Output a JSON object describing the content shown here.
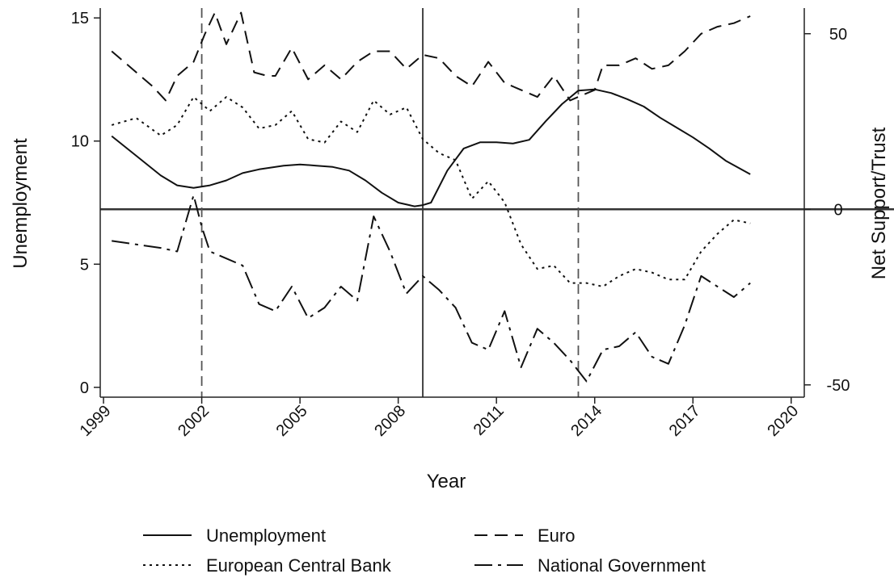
{
  "chart_data": {
    "type": "line",
    "xlabel": "Year",
    "ylabel_left": "Unemployment",
    "ylabel_right": "Net Support/Trust",
    "xlim": [
      1998.9,
      2020.4
    ],
    "ylim_left": [
      -0.4,
      15.4
    ],
    "ylim_right": [
      -53.5,
      57.3
    ],
    "x_ticks": [
      "1999",
      "2002",
      "2005",
      "2008",
      "2011",
      "2014",
      "2017",
      "2020"
    ],
    "y_ticks_left": [
      "0",
      "5",
      "10",
      "15"
    ],
    "y_ticks_right": [
      "-50",
      "0",
      "50"
    ],
    "reference_lines": {
      "horizontal_right_axis": 0,
      "vertical_dashed": [
        2002.0,
        2013.5
      ],
      "vertical_solid": [
        2008.75
      ]
    },
    "legend_position": "bottom",
    "series": [
      {
        "name": "Unemployment",
        "axis": "left",
        "style": "solid",
        "x": [
          1999.25,
          2000.0,
          2000.75,
          2001.25,
          2001.75,
          2002.25,
          2002.75,
          2003.25,
          2003.75,
          2004.5,
          2005.0,
          2005.5,
          2006.0,
          2006.5,
          2007.0,
          2007.5,
          2008.0,
          2008.5,
          2008.75,
          2009.0,
          2009.5,
          2010.0,
          2010.5,
          2011.0,
          2011.5,
          2012.0,
          2012.5,
          2013.0,
          2013.5,
          2014.0,
          2014.5,
          2015.0,
          2015.5,
          2016.0,
          2016.5,
          2017.0,
          2017.5,
          2018.0,
          2018.75
        ],
        "values": [
          10.2,
          9.4,
          8.6,
          8.2,
          8.1,
          8.2,
          8.4,
          8.7,
          8.85,
          9.0,
          9.05,
          9.0,
          8.95,
          8.8,
          8.4,
          7.9,
          7.5,
          7.35,
          7.4,
          7.5,
          8.8,
          9.7,
          9.95,
          9.95,
          9.9,
          10.05,
          10.8,
          11.5,
          12.05,
          12.1,
          11.95,
          11.7,
          11.4,
          10.95,
          10.55,
          10.15,
          9.7,
          9.2,
          8.65
        ]
      },
      {
        "name": "Euro",
        "axis": "right",
        "style": "dashed",
        "x": [
          1999.25,
          2000.0,
          2000.5,
          2000.9,
          2001.25,
          2001.75,
          2002.1,
          2002.4,
          2002.75,
          2003.2,
          2003.6,
          2004.0,
          2004.25,
          2004.75,
          2005.25,
          2005.75,
          2006.25,
          2006.75,
          2007.25,
          2007.75,
          2008.25,
          2008.75,
          2009.25,
          2009.75,
          2010.25,
          2010.75,
          2011.25,
          2011.75,
          2012.25,
          2012.75,
          2013.25,
          2013.75,
          2014.0,
          2014.25,
          2014.75,
          2015.25,
          2015.75,
          2016.25,
          2016.75,
          2017.25,
          2017.75,
          2018.25,
          2018.75
        ],
        "values": [
          45,
          39,
          35,
          31,
          38,
          42,
          50,
          56,
          47,
          56,
          39,
          38,
          38,
          46,
          37,
          41,
          37,
          42,
          45,
          45,
          40,
          44,
          43,
          38,
          35,
          42,
          36,
          34,
          32,
          38,
          31,
          33,
          34,
          41,
          41,
          43,
          40,
          41,
          45,
          50,
          52,
          53,
          55
        ]
      },
      {
        "name": "European Central Bank",
        "axis": "right",
        "style": "dotted",
        "x": [
          1999.25,
          2000.0,
          2000.75,
          2001.25,
          2001.75,
          2002.25,
          2002.75,
          2003.25,
          2003.75,
          2004.25,
          2004.75,
          2005.25,
          2005.75,
          2006.25,
          2006.75,
          2007.25,
          2007.75,
          2008.25,
          2008.75,
          2009.25,
          2009.75,
          2010.25,
          2010.75,
          2011.25,
          2011.75,
          2012.25,
          2012.75,
          2013.25,
          2013.75,
          2014.25,
          2014.75,
          2015.25,
          2015.75,
          2016.25,
          2016.75,
          2017.25,
          2017.75,
          2018.25,
          2018.75
        ],
        "values": [
          24,
          26,
          21,
          24,
          32,
          28,
          32,
          29,
          23,
          24,
          28,
          20,
          19,
          25,
          22,
          31,
          27,
          29,
          20,
          16,
          14,
          3,
          8,
          2,
          -10,
          -17,
          -16,
          -21,
          -21,
          -22,
          -19,
          -17,
          -18,
          -20,
          -20,
          -12,
          -7,
          -3,
          -4
        ]
      },
      {
        "name": "National Government",
        "axis": "right",
        "style": "dash-dot",
        "x": [
          1999.25,
          2000.0,
          2000.75,
          2001.25,
          2001.75,
          2002.0,
          2002.25,
          2002.75,
          2003.25,
          2003.75,
          2004.25,
          2004.75,
          2005.25,
          2005.75,
          2006.25,
          2006.75,
          2007.25,
          2007.75,
          2008.25,
          2008.75,
          2009.25,
          2009.75,
          2010.25,
          2010.75,
          2011.25,
          2011.75,
          2012.25,
          2012.75,
          2013.25,
          2013.75,
          2014.25,
          2014.75,
          2015.25,
          2015.75,
          2016.25,
          2016.75,
          2017.25,
          2017.75,
          2018.25,
          2018.75
        ],
        "values": [
          -9,
          -10,
          -11,
          -12,
          4,
          -5,
          -12,
          -14,
          -16,
          -27,
          -29,
          -22,
          -31,
          -28,
          -22,
          -26,
          -2,
          -12,
          -24,
          -19,
          -23,
          -28,
          -38,
          -40,
          -29,
          -45,
          -34,
          -38,
          -43,
          -49,
          -40,
          -39,
          -35,
          -42,
          -44,
          -33,
          -19,
          -22,
          -25,
          -21
        ]
      }
    ]
  }
}
